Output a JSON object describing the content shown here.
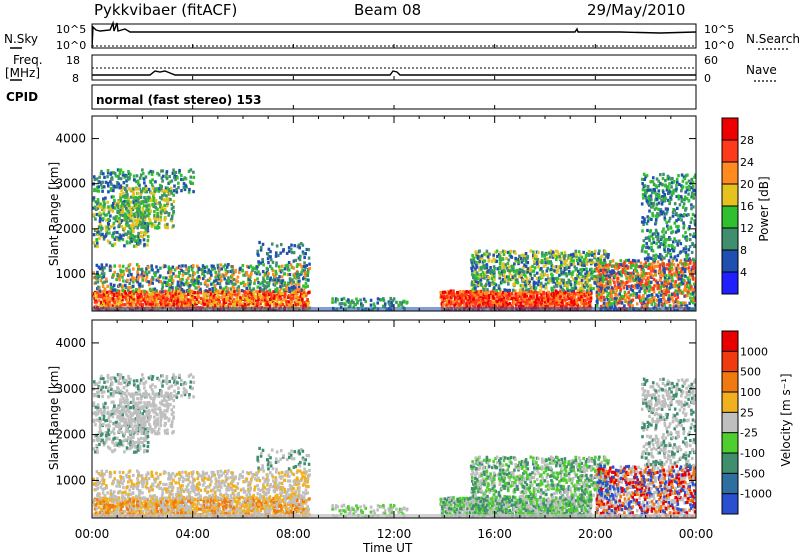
{
  "header": {
    "station": "Pykkvibaer (fitACF)",
    "beam": "Beam 08",
    "date": "29/May/2010"
  },
  "nsky_panel": {
    "left_label": "N.Sky",
    "left_ticks": [
      "10^5",
      "10^0"
    ],
    "right_label": "N.Search",
    "right_ticks": [
      "10^5",
      "10^0"
    ]
  },
  "freq_panel": {
    "left_label_1": "Freq.",
    "left_label_2": "[MHz]",
    "left_ticks": [
      "18",
      "8"
    ],
    "right_label": "Nave",
    "right_ticks": [
      "60",
      "0"
    ]
  },
  "cpid_panel": {
    "label": "CPID",
    "text": "normal (fast stereo) 153"
  },
  "chart_data": [
    {
      "type": "heatmap",
      "panel": "power",
      "ylabel": "Slant Range [km]",
      "yticks": [
        "1000",
        "2000",
        "3000",
        "4000"
      ],
      "ylim": [
        180,
        4500
      ],
      "x_ticks": [
        "00:00",
        "04:00",
        "08:00",
        "12:00",
        "16:00",
        "20:00",
        "00:00"
      ],
      "colorbar": {
        "label": "Power [dB]",
        "tick_labels": [
          "4",
          "8",
          "12",
          "16",
          "20",
          "24",
          "28"
        ],
        "colors": [
          "#1f1fff",
          "#1f4fb0",
          "#3f8f6f",
          "#2fbf2f",
          "#e6c21f",
          "#ff8a1f",
          "#ff3a1a",
          "#ee0000"
        ]
      }
    },
    {
      "type": "heatmap",
      "panel": "velocity",
      "ylabel": "Slant Range [km]",
      "yticks": [
        "1000",
        "2000",
        "3000",
        "4000"
      ],
      "ylim": [
        180,
        4500
      ],
      "x_ticks": [
        "00:00",
        "04:00",
        "08:00",
        "12:00",
        "16:00",
        "20:00",
        "00:00"
      ],
      "xlabel": "Time UT",
      "colorbar": {
        "label": "Velocity [m s⁻¹]",
        "tick_labels": [
          "1000",
          "500",
          "100",
          "25",
          "-25",
          "-100",
          "-500",
          "-1000"
        ],
        "colors": [
          "#2a4fd0",
          "#2f6f9f",
          "#3f8f6f",
          "#4fcf2f",
          "#bfbfbf",
          "#f0b020",
          "#f07a10",
          "#f03a10",
          "#e80000"
        ]
      }
    }
  ]
}
